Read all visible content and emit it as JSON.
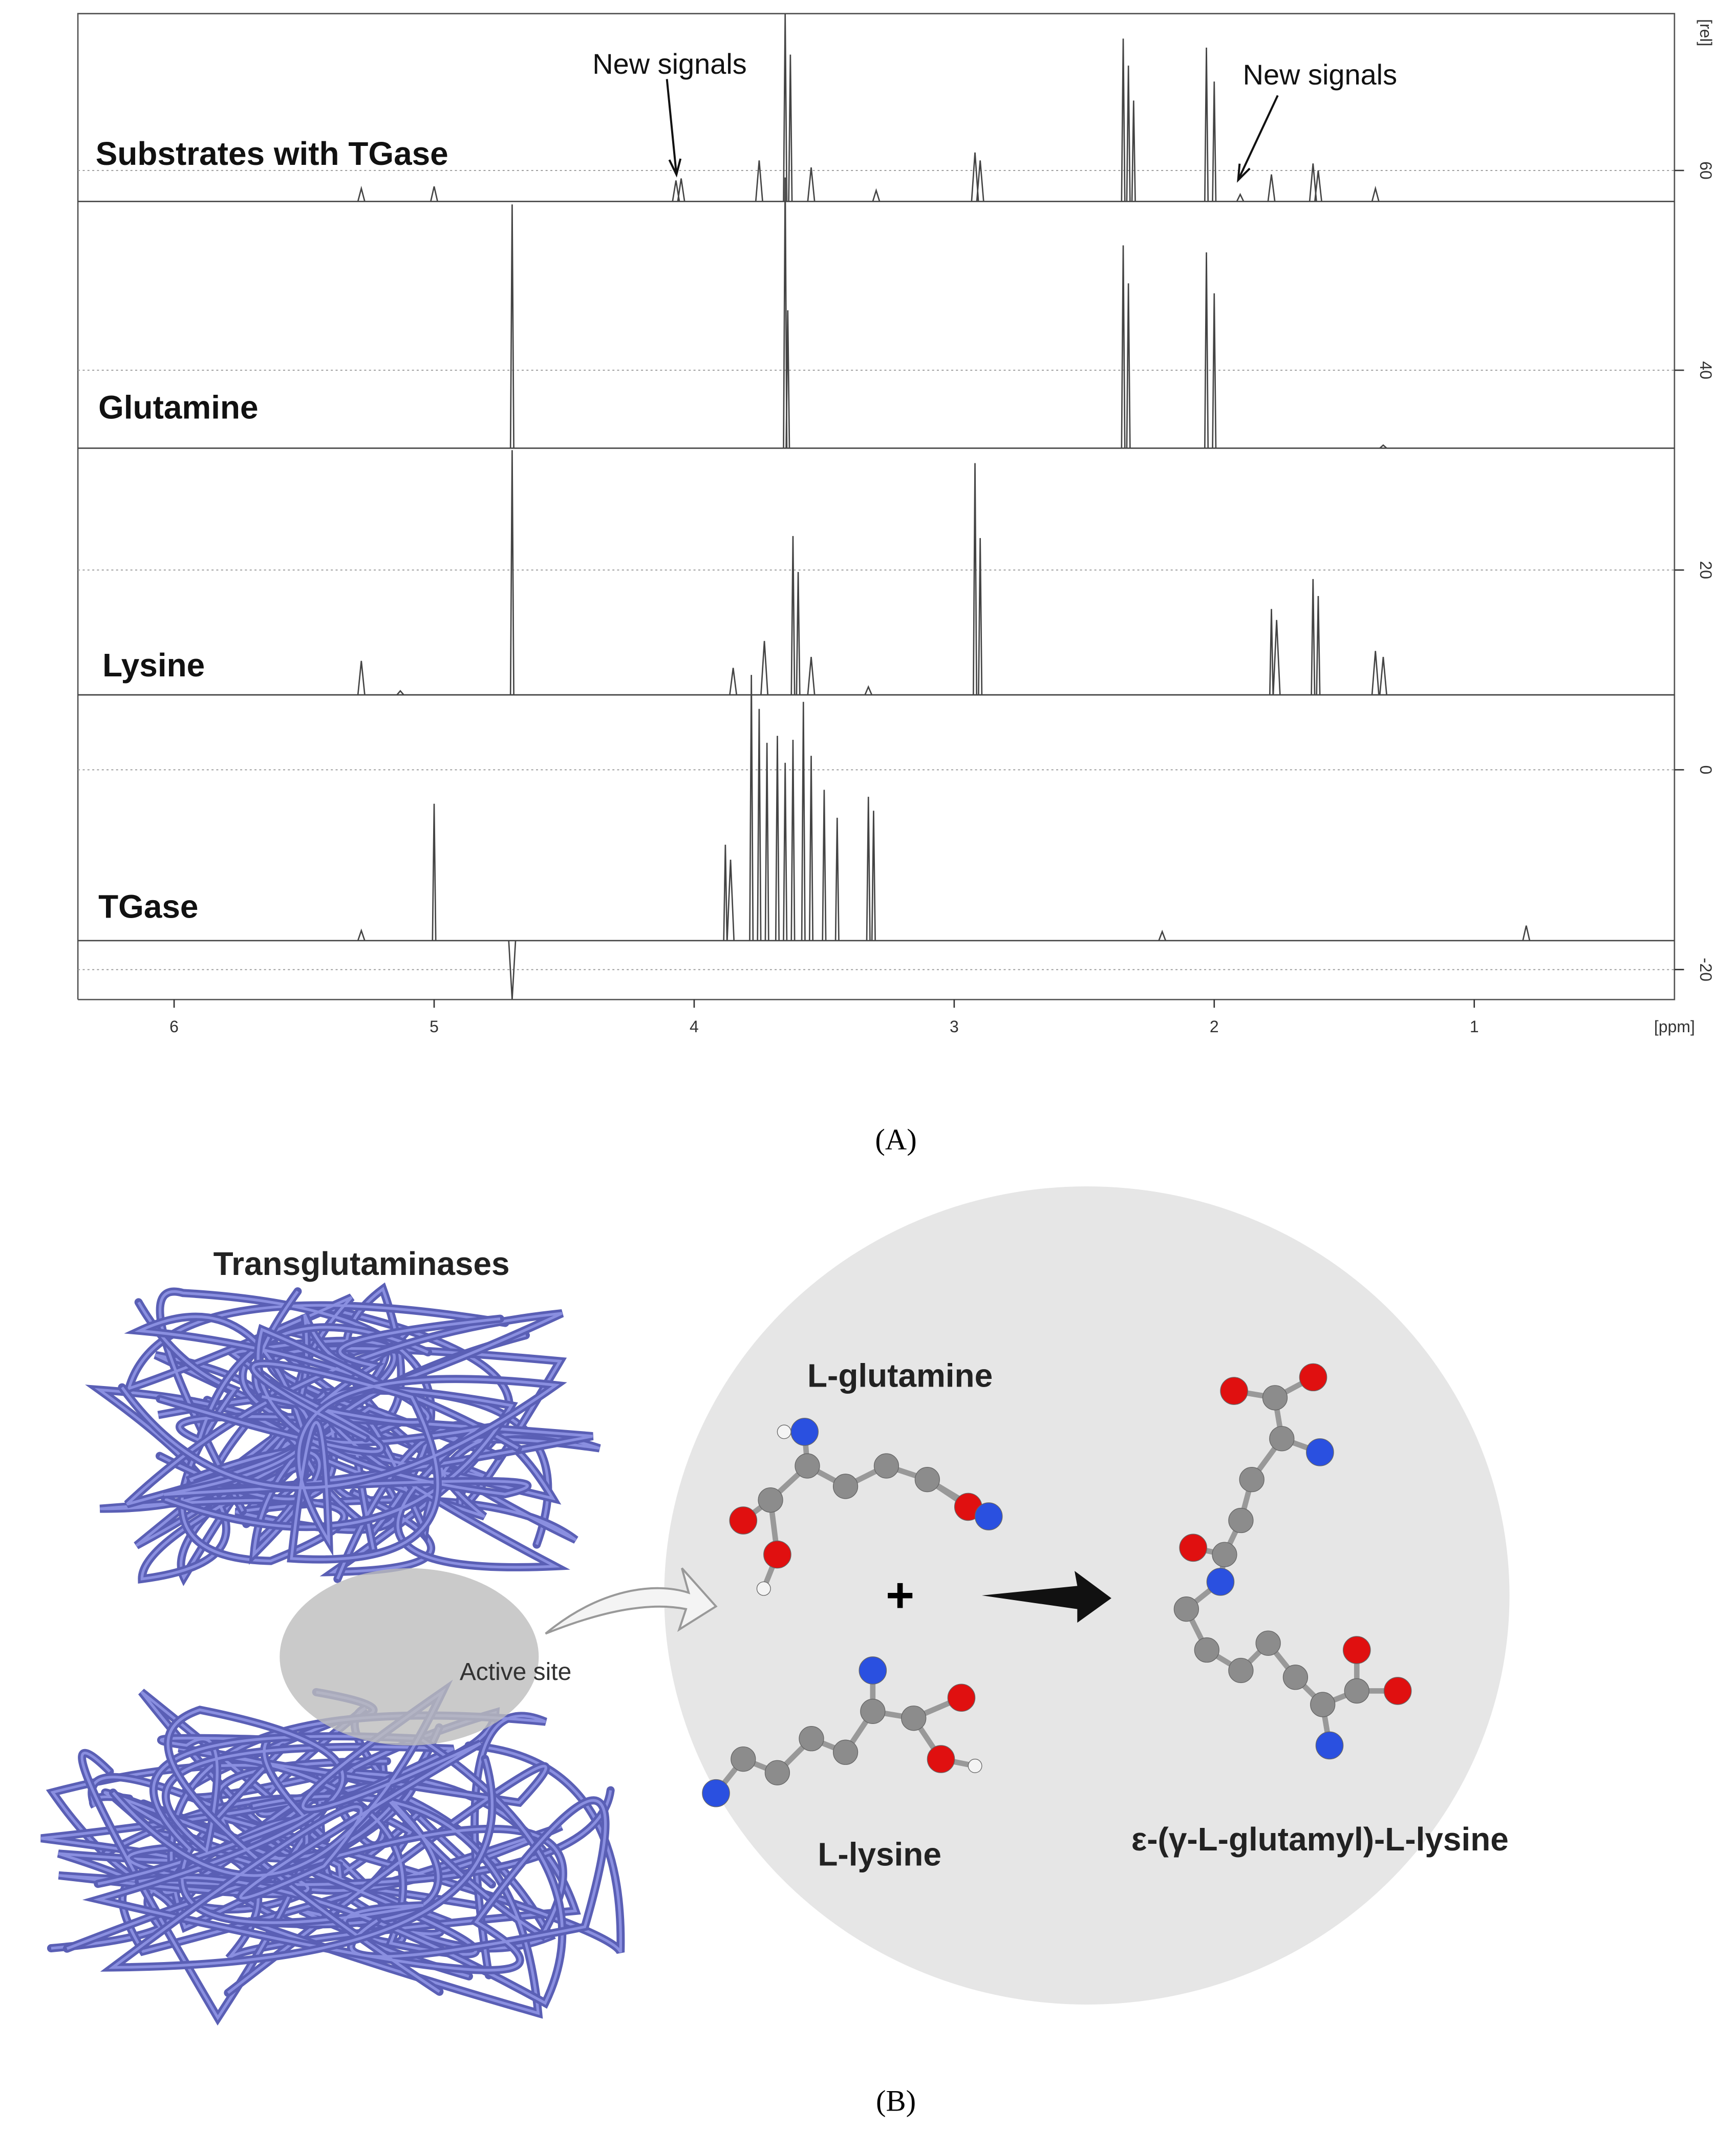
{
  "chart_data": {
    "type": "spectrum",
    "x_label": "[ppm]",
    "y_label": "[rel]",
    "xlim": [
      6.37,
      0.23
    ],
    "xticks": [
      6,
      5,
      4,
      3,
      2,
      1
    ],
    "ylim": [
      -23,
      75.7
    ],
    "yticks": [
      60,
      40,
      20,
      0,
      -20
    ],
    "grid": true,
    "color": "#444",
    "series": [
      {
        "name": "Substrates with TGase",
        "baseline": 56.9,
        "peaks": [
          [
            5.28,
            58.2
          ],
          [
            5.0,
            58.4
          ],
          [
            4.07,
            59.0
          ],
          [
            4.05,
            59.2
          ],
          [
            3.75,
            61.0
          ],
          [
            3.65,
            75.7
          ],
          [
            3.63,
            71.6
          ],
          [
            3.55,
            60.3
          ],
          [
            3.3,
            58.0
          ],
          [
            2.92,
            61.8
          ],
          [
            2.9,
            61.0
          ],
          [
            2.35,
            73.2
          ],
          [
            2.33,
            70.5
          ],
          [
            2.31,
            67.0
          ],
          [
            2.03,
            72.3
          ],
          [
            2.0,
            68.9
          ],
          [
            1.9,
            57.6
          ],
          [
            1.78,
            59.6
          ],
          [
            1.62,
            60.7
          ],
          [
            1.6,
            60.0
          ],
          [
            1.38,
            58.2
          ]
        ]
      },
      {
        "name": "Glutamine",
        "baseline": 32.2,
        "peaks": [
          [
            4.7,
            56.6
          ],
          [
            3.65,
            59.3
          ],
          [
            3.64,
            46.0
          ],
          [
            2.35,
            52.5
          ],
          [
            2.33,
            48.7
          ],
          [
            2.03,
            51.8
          ],
          [
            2.0,
            47.7
          ],
          [
            1.35,
            32.5
          ]
        ]
      },
      {
        "name": "Lysine",
        "baseline": 7.5,
        "peaks": [
          [
            5.28,
            10.9
          ],
          [
            5.13,
            7.9
          ],
          [
            4.7,
            32.0
          ],
          [
            3.85,
            10.2
          ],
          [
            3.73,
            12.9
          ],
          [
            3.62,
            23.4
          ],
          [
            3.6,
            19.8
          ],
          [
            3.55,
            11.3
          ],
          [
            3.33,
            8.3
          ],
          [
            2.92,
            30.7
          ],
          [
            2.9,
            23.2
          ],
          [
            1.78,
            16.1
          ],
          [
            1.76,
            15.0
          ],
          [
            1.62,
            19.1
          ],
          [
            1.6,
            17.4
          ],
          [
            1.38,
            11.9
          ],
          [
            1.35,
            11.3
          ]
        ]
      },
      {
        "name": "TGase",
        "baseline": -17.1,
        "peaks": [
          [
            5.28,
            -16.1
          ],
          [
            5.0,
            -3.4
          ],
          [
            4.7,
            -23
          ],
          [
            3.88,
            -7.5
          ],
          [
            3.86,
            -9
          ],
          [
            3.78,
            9.5
          ],
          [
            3.75,
            6.1
          ],
          [
            3.72,
            2.7
          ],
          [
            3.68,
            3.4
          ],
          [
            3.65,
            0.7
          ],
          [
            3.62,
            3.0
          ],
          [
            3.58,
            6.8
          ],
          [
            3.55,
            1.4
          ],
          [
            3.5,
            -2.0
          ],
          [
            3.45,
            -4.8
          ],
          [
            3.33,
            -2.7
          ],
          [
            3.31,
            -4.1
          ],
          [
            2.2,
            -16.2
          ],
          [
            0.8,
            -15.6
          ]
        ]
      }
    ],
    "annotations": [
      "New signals",
      "New signals"
    ]
  },
  "panel_b": {
    "protein_label": "Transglutaminases",
    "active_site_label": "Active site",
    "reactants": [
      "L-glutamine",
      "L-lysine"
    ],
    "plus": "+",
    "product_label": "ε-(γ-L-glutamyl)-L-lysine"
  },
  "captions": [
    "(A)",
    "(B)"
  ]
}
